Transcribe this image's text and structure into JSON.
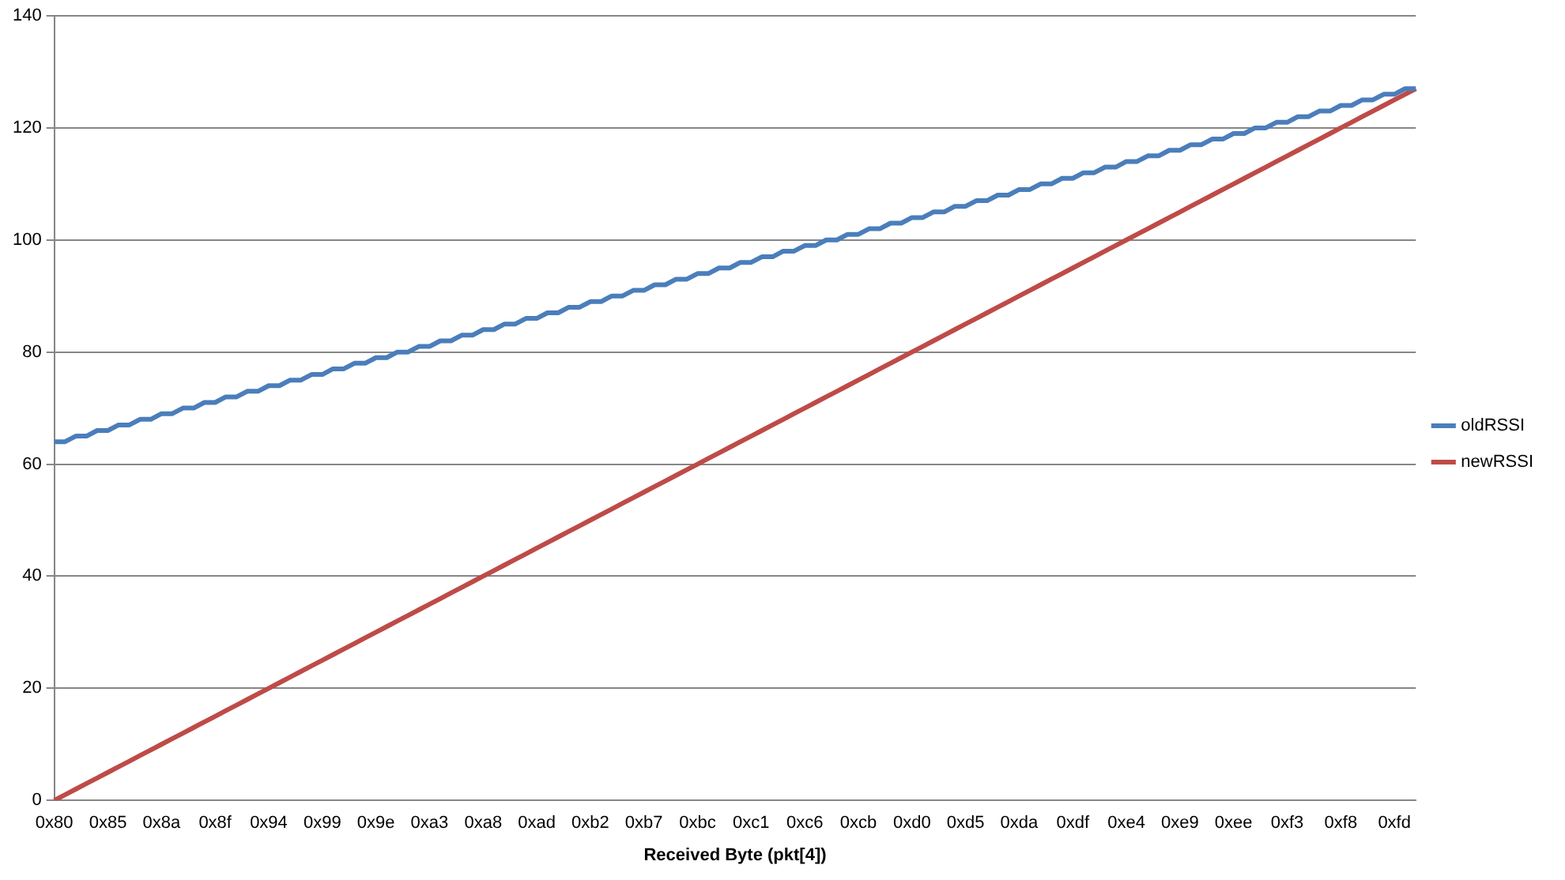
{
  "chart_data": {
    "type": "line",
    "xlabel": "Received Byte (pkt[4])",
    "categories": [
      "0x80",
      null,
      null,
      null,
      null,
      "0x85",
      null,
      null,
      null,
      null,
      "0x8a",
      null,
      null,
      null,
      null,
      "0x8f",
      null,
      null,
      null,
      null,
      "0x94",
      null,
      null,
      null,
      null,
      "0x99",
      null,
      null,
      null,
      null,
      "0x9e",
      null,
      null,
      null,
      null,
      "0xa3",
      null,
      null,
      null,
      null,
      "0xa8",
      null,
      null,
      null,
      null,
      "0xad",
      null,
      null,
      null,
      null,
      "0xb2",
      null,
      null,
      null,
      null,
      "0xb7",
      null,
      null,
      null,
      null,
      "0xbc",
      null,
      null,
      null,
      null,
      "0xc1",
      null,
      null,
      null,
      null,
      "0xc6",
      null,
      null,
      null,
      null,
      "0xcb",
      null,
      null,
      null,
      null,
      "0xd0",
      null,
      null,
      null,
      null,
      "0xd5",
      null,
      null,
      null,
      null,
      "0xda",
      null,
      null,
      null,
      null,
      "0xdf",
      null,
      null,
      null,
      null,
      "0xe4",
      null,
      null,
      null,
      null,
      "0xe9",
      null,
      null,
      null,
      null,
      "0xee",
      null,
      null,
      null,
      null,
      "0xf3",
      null,
      null,
      null,
      null,
      "0xf8",
      null,
      null,
      null,
      null,
      "0xfd",
      null,
      null
    ],
    "series": [
      {
        "name": "oldRSSI",
        "color": "#4a7ebb",
        "values": [
          64,
          64,
          65,
          65,
          66,
          66,
          67,
          67,
          68,
          68,
          69,
          69,
          70,
          70,
          71,
          71,
          72,
          72,
          73,
          73,
          74,
          74,
          75,
          75,
          76,
          76,
          77,
          77,
          78,
          78,
          79,
          79,
          80,
          80,
          81,
          81,
          82,
          82,
          83,
          83,
          84,
          84,
          85,
          85,
          86,
          86,
          87,
          87,
          88,
          88,
          89,
          89,
          90,
          90,
          91,
          91,
          92,
          92,
          93,
          93,
          94,
          94,
          95,
          95,
          96,
          96,
          97,
          97,
          98,
          98,
          99,
          99,
          100,
          100,
          101,
          101,
          102,
          102,
          103,
          103,
          104,
          104,
          105,
          105,
          106,
          106,
          107,
          107,
          108,
          108,
          109,
          109,
          110,
          110,
          111,
          111,
          112,
          112,
          113,
          113,
          114,
          114,
          115,
          115,
          116,
          116,
          117,
          117,
          118,
          118,
          119,
          119,
          120,
          120,
          121,
          121,
          122,
          122,
          123,
          123,
          124,
          124,
          125,
          125,
          126,
          126,
          127,
          127
        ]
      },
      {
        "name": "newRSSI",
        "color": "#be4b48",
        "values": [
          0,
          1,
          2,
          3,
          4,
          5,
          6,
          7,
          8,
          9,
          10,
          11,
          12,
          13,
          14,
          15,
          16,
          17,
          18,
          19,
          20,
          21,
          22,
          23,
          24,
          25,
          26,
          27,
          28,
          29,
          30,
          31,
          32,
          33,
          34,
          35,
          36,
          37,
          38,
          39,
          40,
          41,
          42,
          43,
          44,
          45,
          46,
          47,
          48,
          49,
          50,
          51,
          52,
          53,
          54,
          55,
          56,
          57,
          58,
          59,
          60,
          61,
          62,
          63,
          64,
          65,
          66,
          67,
          68,
          69,
          70,
          71,
          72,
          73,
          74,
          75,
          76,
          77,
          78,
          79,
          80,
          81,
          82,
          83,
          84,
          85,
          86,
          87,
          88,
          89,
          90,
          91,
          92,
          93,
          94,
          95,
          96,
          97,
          98,
          99,
          100,
          101,
          102,
          103,
          104,
          105,
          106,
          107,
          108,
          109,
          110,
          111,
          112,
          113,
          114,
          115,
          116,
          117,
          118,
          119,
          120,
          121,
          122,
          123,
          124,
          125,
          126,
          127
        ]
      }
    ],
    "ylim": [
      0,
      140
    ],
    "yticks": [
      0,
      20,
      40,
      60,
      80,
      100,
      120,
      140
    ],
    "grid": "y",
    "legend": "right",
    "marker": "none",
    "line_style": "solid"
  }
}
